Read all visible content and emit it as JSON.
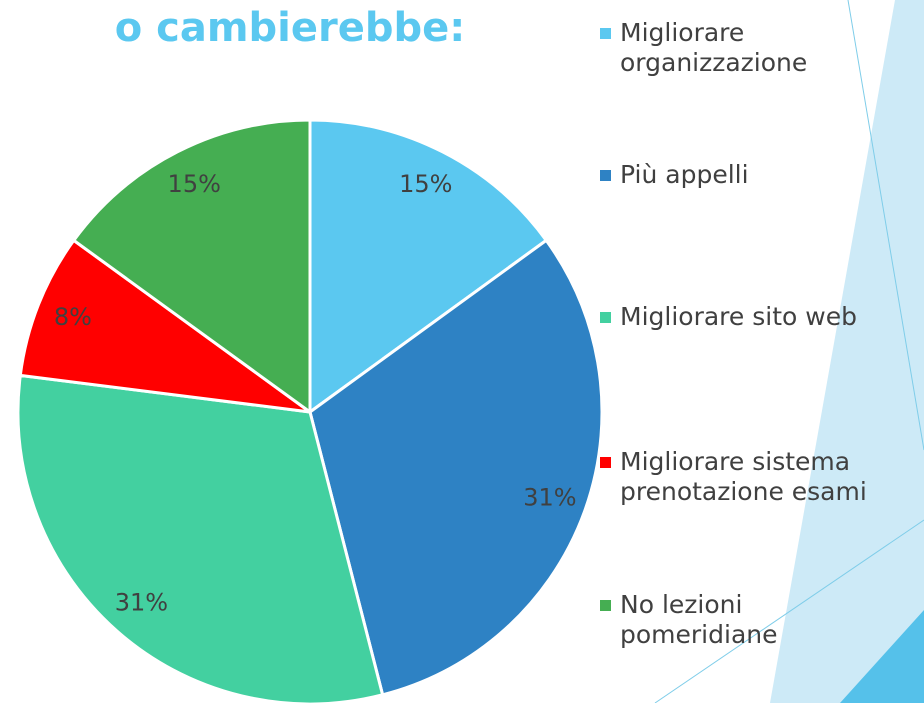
{
  "chart_data": {
    "type": "pie",
    "title": "o cambierebbe:",
    "categories": [
      "Migliorare organizzazione",
      "Più appelli",
      "Migliorare sito web",
      "Migliorare sistema prenotazione esami",
      "No lezioni pomeridiane"
    ],
    "values": [
      15,
      31,
      31,
      8,
      15
    ],
    "value_labels": [
      "15%",
      "31%",
      "31%",
      "8%",
      "15%"
    ],
    "colors": [
      "#5bc8f0",
      "#2e82c4",
      "#43d0a0",
      "#ff0000",
      "#45ae52"
    ],
    "legend": "right"
  }
}
